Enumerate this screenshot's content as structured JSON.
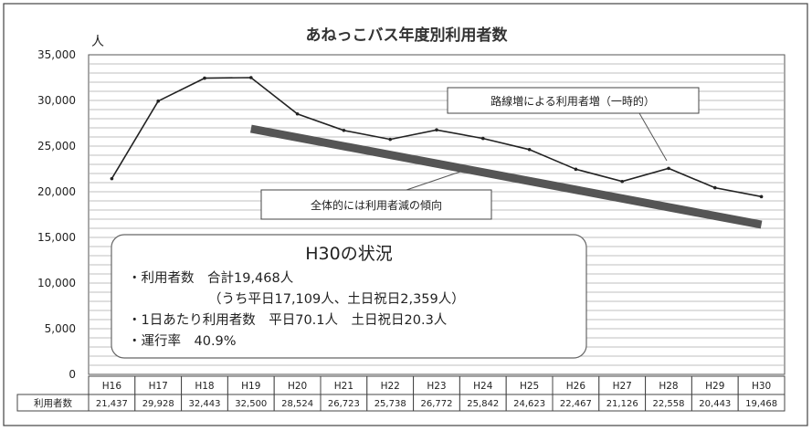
{
  "chart_data": {
    "type": "line",
    "title": "あねっこバス年度別利用者数",
    "ylabel": "人",
    "ylim": [
      0,
      35000
    ],
    "yticks": [
      "0",
      "5,000",
      "10,000",
      "15,000",
      "20,000",
      "25,000",
      "30,000",
      "35,000"
    ],
    "ytick_values": [
      0,
      5000,
      10000,
      15000,
      20000,
      25000,
      30000,
      35000
    ],
    "grid": true,
    "categories": [
      "H16",
      "H17",
      "H18",
      "H19",
      "H20",
      "H21",
      "H22",
      "H23",
      "H24",
      "H25",
      "H26",
      "H27",
      "H28",
      "H29",
      "H30"
    ],
    "series": [
      {
        "name": "利用者数",
        "values": [
          21437,
          29928,
          32443,
          32500,
          28524,
          26723,
          25738,
          26772,
          25842,
          24623,
          22467,
          21126,
          22558,
          20443,
          19468
        ],
        "table_values": [
          "21,437",
          "29,928",
          "32,443",
          "32,500",
          "28,524",
          "26,723",
          "25,738",
          "26,772",
          "25,842",
          "24,623",
          "22,467",
          "21,126",
          "22,558",
          "20,443",
          "19,468"
        ],
        "color": "#222222"
      }
    ],
    "trend_line": {
      "start": {
        "category": "H19",
        "value": 26900
      },
      "end": {
        "category": "H30",
        "value": 16400
      },
      "color": "#555555"
    },
    "annotations": {
      "increase": "路線増による利用者増（一時的）",
      "decrease": "全体的には利用者減の傾向"
    },
    "summary": {
      "title": "H30の状況",
      "lines": [
        "・利用者数　合計19,468人",
        "（うち平日17,109人、土日祝日2,359人）",
        "・1日あたり利用者数　平日70.1人　土日祝日20.3人",
        "・運行率　40.9%"
      ]
    }
  }
}
